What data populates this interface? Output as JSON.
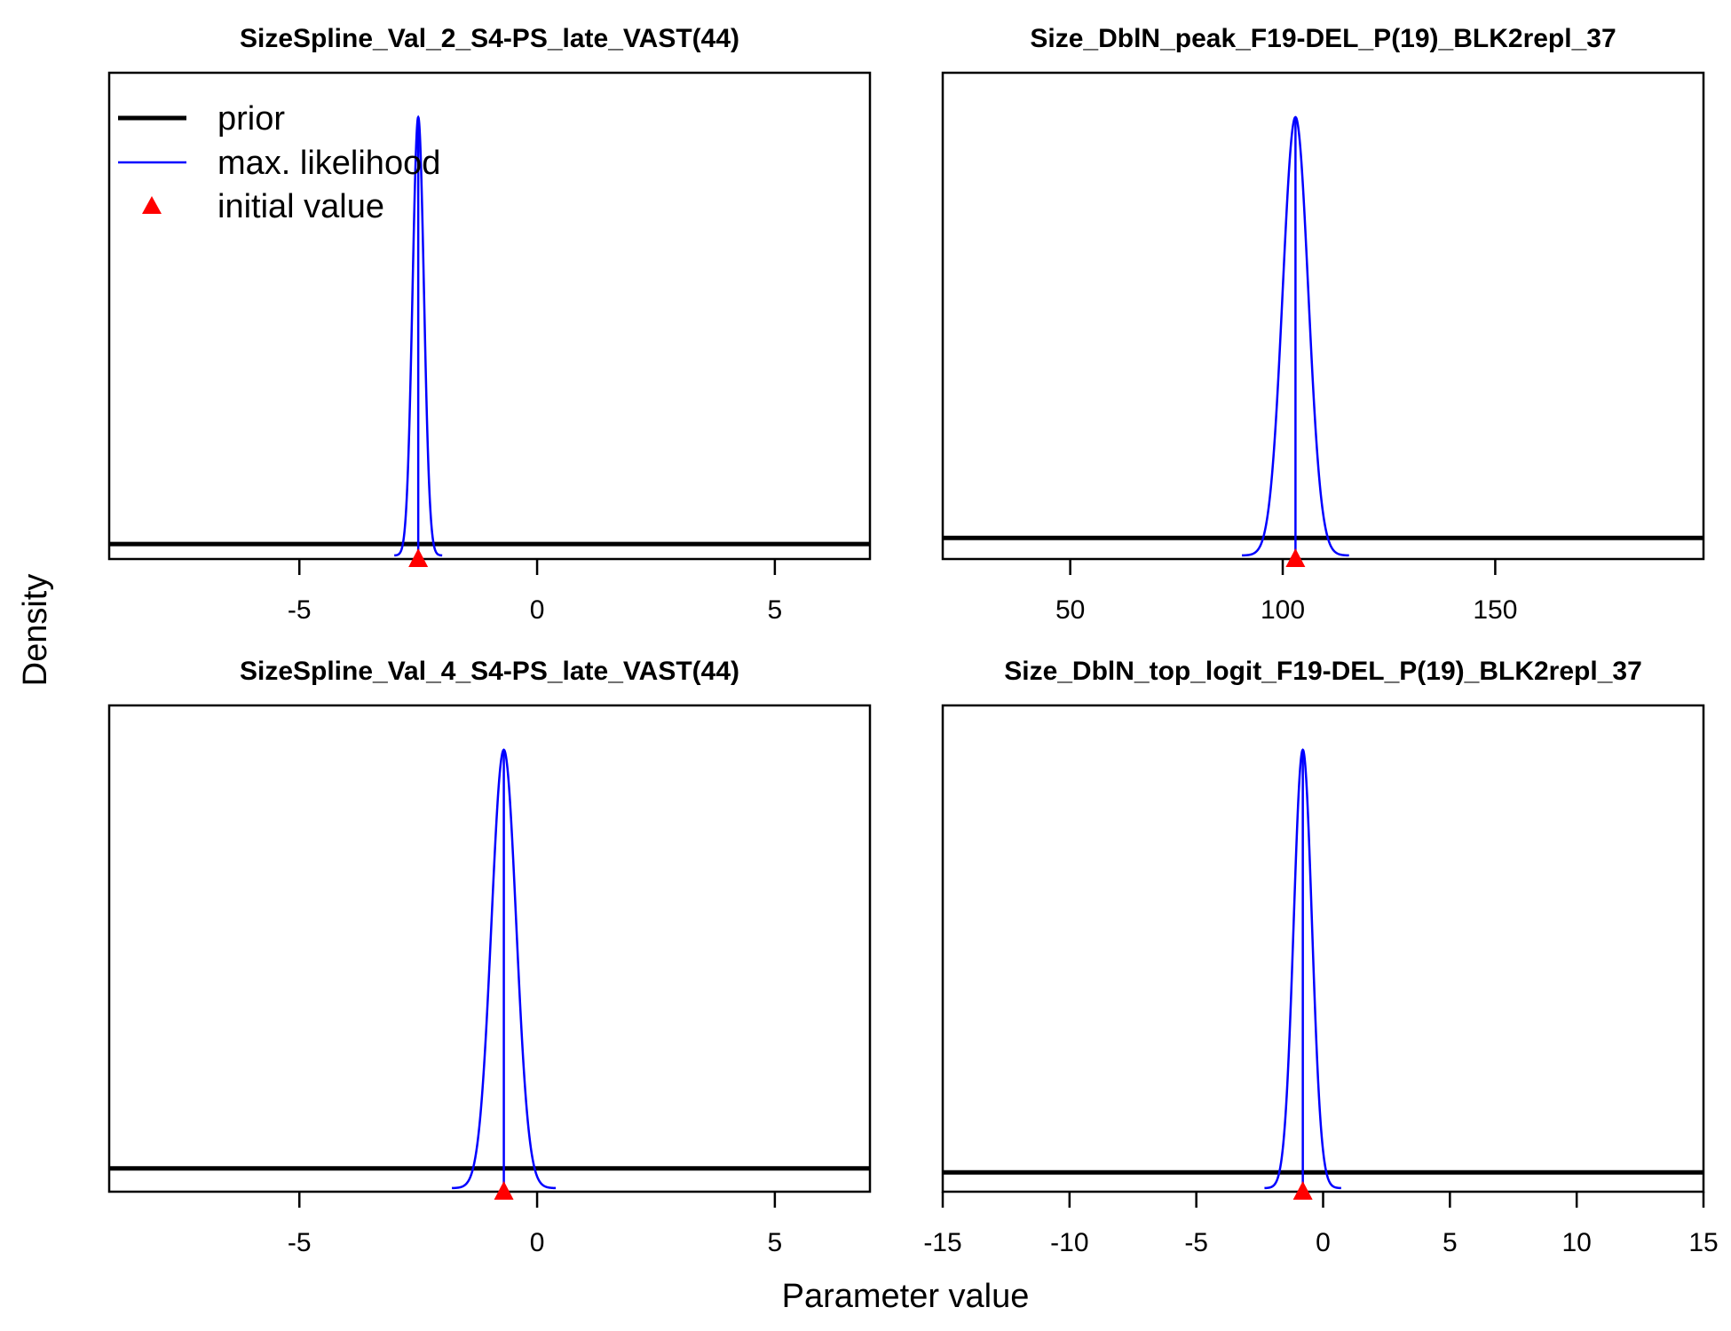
{
  "figure": {
    "xlabel": "Parameter value",
    "ylabel": "Density",
    "colors": {
      "prior": "#000000",
      "mle": "#0000ff",
      "initial": "#ff0000",
      "axis": "#000000"
    }
  },
  "legend": {
    "position": "top-left of first panel",
    "entries": [
      {
        "label": "prior",
        "symbol": "thick-line",
        "color": "#000000"
      },
      {
        "label": "max. likelihood",
        "symbol": "thin-line",
        "color": "#0000ff"
      },
      {
        "label": "initial value",
        "symbol": "triangle",
        "color": "#ff0000"
      }
    ]
  },
  "chart_data": [
    {
      "type": "line",
      "title": "SizeSpline_Val_2_S4-PS_late_VAST(44)",
      "xlim": [
        -9,
        7
      ],
      "xticks": [
        -5,
        0,
        5
      ],
      "xtick_labels": [
        "-5",
        "0",
        "5"
      ],
      "y_axis_shown": false,
      "prior": {
        "shape": "uniform",
        "level": 0.026
      },
      "mle": {
        "mean": -2.5,
        "sd": 0.12
      },
      "initial_value": -2.5
    },
    {
      "type": "line",
      "title": "Size_DblN_peak_F19-DEL_P(19)_BLK2repl_37",
      "xlim": [
        20,
        199
      ],
      "xticks": [
        50,
        100,
        150
      ],
      "xtick_labels": [
        "50",
        "100",
        "150"
      ],
      "y_axis_shown": false,
      "prior": {
        "shape": "uniform",
        "level": 0.04
      },
      "mle": {
        "mean": 103,
        "sd": 3.0
      },
      "initial_value": 103
    },
    {
      "type": "line",
      "title": "SizeSpline_Val_4_S4-PS_late_VAST(44)",
      "xlim": [
        -9,
        7
      ],
      "xticks": [
        -5,
        0,
        5
      ],
      "xtick_labels": [
        "-5",
        "0",
        "5"
      ],
      "y_axis_shown": false,
      "prior": {
        "shape": "uniform",
        "level": 0.045
      },
      "mle": {
        "mean": -0.7,
        "sd": 0.26
      },
      "initial_value": -0.7
    },
    {
      "type": "line",
      "title": "Size_DblN_top_logit_F19-DEL_P(19)_BLK2repl_37",
      "xlim": [
        -15,
        15
      ],
      "xticks": [
        -15,
        -10,
        -5,
        0,
        5,
        10,
        15
      ],
      "xtick_labels": [
        "-15",
        "-10",
        "-5",
        "0",
        "5",
        "10",
        "15"
      ],
      "y_axis_shown": false,
      "prior": {
        "shape": "uniform",
        "level": 0.036
      },
      "mle": {
        "mean": -0.8,
        "sd": 0.36
      },
      "initial_value": -0.8
    }
  ]
}
